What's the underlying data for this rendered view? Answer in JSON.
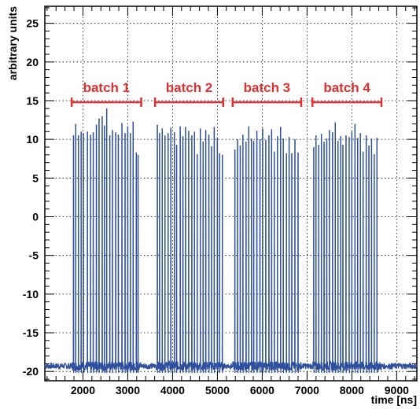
{
  "chart_data": {
    "type": "line",
    "title": "",
    "xlabel": "time [ns]",
    "ylabel": "arbitrary units",
    "xlim": [
      1150,
      9450
    ],
    "ylim": [
      -21.2,
      27.2
    ],
    "xticks": [
      2000,
      3000,
      4000,
      5000,
      6000,
      7000,
      8000,
      9000
    ],
    "xtick_labels": [
      "2000",
      "3000",
      "4000",
      "5000",
      "6000",
      "7000",
      "8000",
      "9000"
    ],
    "yticks": [
      -20,
      -15,
      -10,
      -5,
      0,
      5,
      10,
      15,
      20,
      25
    ],
    "ytick_labels": [
      "-20",
      "-15",
      "-10",
      "-5",
      "0",
      "5",
      "10",
      "15",
      "20",
      "25"
    ],
    "grid": true,
    "colors": {
      "signal": "#2d4f9e",
      "batch": "#e03030"
    },
    "baseline": -19.3,
    "series": [
      {
        "values_description_free": true,
        "peaks": [
          [
            1790,
            10.5
          ],
          [
            1840,
            12.0
          ],
          [
            1900,
            10.5
          ],
          [
            1960,
            11.0
          ],
          [
            2010,
            10.8
          ],
          [
            2100,
            11.0
          ],
          [
            2170,
            10.6
          ],
          [
            2230,
            10.9
          ],
          [
            2300,
            11.9
          ],
          [
            2360,
            12.7
          ],
          [
            2430,
            13.0
          ],
          [
            2480,
            11.8
          ],
          [
            2530,
            14.0
          ],
          [
            2600,
            10.5
          ],
          [
            2660,
            11.2
          ],
          [
            2730,
            10.9
          ],
          [
            2790,
            10.6
          ],
          [
            2870,
            12.1
          ],
          [
            2940,
            10.8
          ],
          [
            3000,
            11.7
          ],
          [
            3060,
            10.8
          ],
          [
            3120,
            12.3
          ],
          [
            3190,
            8.3
          ],
          [
            3230,
            8.0
          ],
          [
            3660,
            11.9
          ],
          [
            3710,
            10.8
          ],
          [
            3770,
            11.4
          ],
          [
            3830,
            10.5
          ],
          [
            3900,
            10.8
          ],
          [
            3960,
            11.5
          ],
          [
            4040,
            10.9
          ],
          [
            4090,
            9.3
          ],
          [
            4170,
            11.7
          ],
          [
            4230,
            10.4
          ],
          [
            4290,
            11.6
          ],
          [
            4360,
            11.1
          ],
          [
            4430,
            10.5
          ],
          [
            4490,
            11.0
          ],
          [
            4550,
            8.1
          ],
          [
            4620,
            11.4
          ],
          [
            4680,
            9.7
          ],
          [
            4740,
            11.2
          ],
          [
            4810,
            10.6
          ],
          [
            4870,
            9.1
          ],
          [
            4930,
            11.6
          ],
          [
            5000,
            10.2
          ],
          [
            5050,
            8.2
          ],
          [
            5110,
            8.0
          ],
          [
            5390,
            8.7
          ],
          [
            5450,
            10.0
          ],
          [
            5510,
            9.2
          ],
          [
            5570,
            10.6
          ],
          [
            5640,
            9.7
          ],
          [
            5700,
            11.7
          ],
          [
            5760,
            10.1
          ],
          [
            5810,
            9.8
          ],
          [
            5880,
            11.1
          ],
          [
            5950,
            10.0
          ],
          [
            6010,
            11.4
          ],
          [
            6080,
            9.9
          ],
          [
            6150,
            10.5
          ],
          [
            6210,
            11.3
          ],
          [
            6270,
            8.4
          ],
          [
            6340,
            10.4
          ],
          [
            6410,
            11.6
          ],
          [
            6470,
            10.1
          ],
          [
            6540,
            8.2
          ],
          [
            6600,
            10.3
          ],
          [
            6660,
            8.2
          ],
          [
            6730,
            10.0
          ],
          [
            6800,
            8.3
          ],
          [
            7150,
            9.0
          ],
          [
            7200,
            10.5
          ],
          [
            7260,
            9.3
          ],
          [
            7320,
            10.7
          ],
          [
            7380,
            9.7
          ],
          [
            7440,
            10.1
          ],
          [
            7500,
            11.2
          ],
          [
            7570,
            10.9
          ],
          [
            7630,
            12.2
          ],
          [
            7690,
            9.8
          ],
          [
            7750,
            10.4
          ],
          [
            7800,
            9.3
          ],
          [
            7870,
            10.5
          ],
          [
            7940,
            10.3
          ],
          [
            8000,
            11.0
          ],
          [
            8070,
            12.0
          ],
          [
            8130,
            10.2
          ],
          [
            8190,
            10.8
          ],
          [
            8250,
            8.4
          ],
          [
            8320,
            10.5
          ],
          [
            8380,
            9.2
          ],
          [
            8440,
            10.1
          ],
          [
            8500,
            8.1
          ],
          [
            8560,
            10.2
          ]
        ]
      }
    ],
    "annotations": [
      {
        "text": "batch 1",
        "x_start": 1750,
        "x_end": 3300,
        "y": 14.8
      },
      {
        "text": "batch 2",
        "x_start": 3610,
        "x_end": 5130,
        "y": 14.8
      },
      {
        "text": "batch 3",
        "x_start": 5340,
        "x_end": 6870,
        "y": 14.8
      },
      {
        "text": "batch 4",
        "x_start": 7120,
        "x_end": 8660,
        "y": 14.8
      }
    ]
  }
}
